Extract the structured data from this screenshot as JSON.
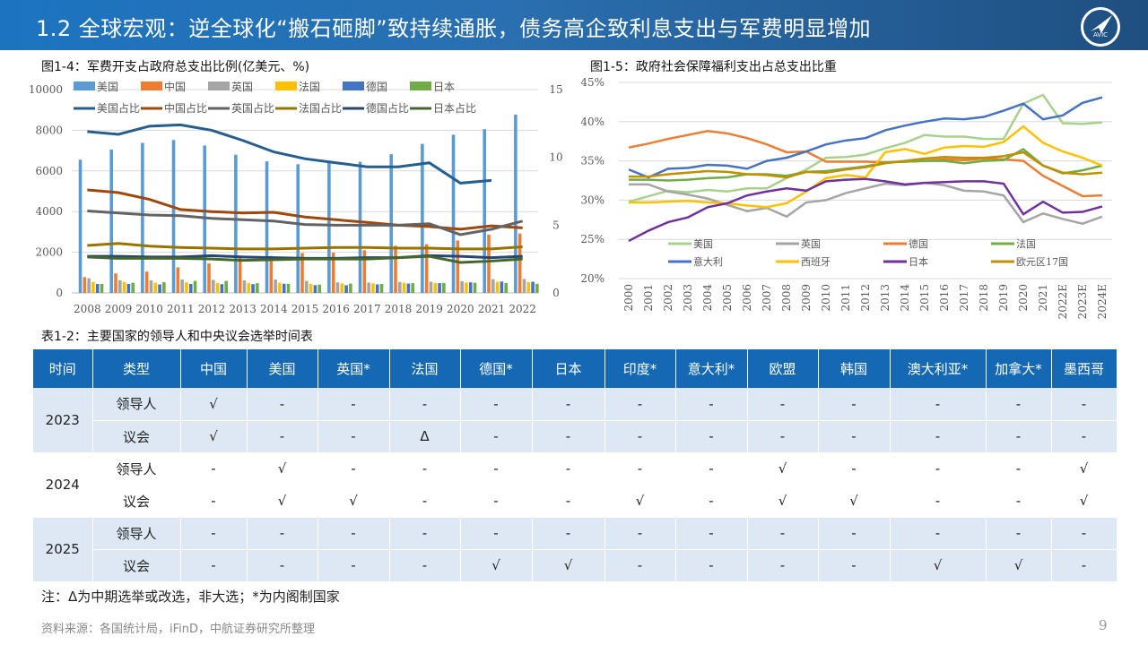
{
  "header": {
    "title": "1.2 全球宏观：逆全球化“搬石砸脚”致持续通胀，债务高企致利息支出与军费明显增加",
    "logo_text": "AVIC"
  },
  "colors": {
    "header": "#1c74c0",
    "table_header": "#1468b4",
    "table_alt": "#dde8f4"
  },
  "chart_data": [
    {
      "type": "bar+line",
      "title": "图1-4：军费开支占政府总支出比例(亿美元、%)",
      "categories": [
        "2008",
        "2009",
        "2010",
        "2011",
        "2012",
        "2013",
        "2014",
        "2015",
        "2016",
        "2017",
        "2018",
        "2019",
        "2020",
        "2021",
        "2022"
      ],
      "ylim": [
        0,
        10000
      ],
      "yticks": [
        "0",
        "2000",
        "4000",
        "6000",
        "8000",
        "10000"
      ],
      "y2lim": [
        0,
        15
      ],
      "y2ticks": [
        "0",
        "5",
        "10",
        "15"
      ],
      "legend": "top",
      "bar_series": [
        {
          "name": "美国",
          "color": "#5b9bd5",
          "values": [
            6550,
            7050,
            7380,
            7520,
            7250,
            6800,
            6470,
            6330,
            6400,
            6450,
            6820,
            7330,
            7780,
            8050,
            8770
          ]
        },
        {
          "name": "中国",
          "color": "#ed7d31",
          "values": [
            780,
            960,
            1050,
            1260,
            1450,
            1720,
            1820,
            1960,
            1980,
            2100,
            2320,
            2400,
            2580,
            2860,
            2920
          ]
        },
        {
          "name": "英国",
          "color": "#a5a5a5",
          "values": [
            720,
            620,
            620,
            660,
            640,
            620,
            660,
            590,
            520,
            510,
            540,
            550,
            580,
            680,
            690
          ]
        },
        {
          "name": "法国",
          "color": "#ffc000",
          "values": [
            540,
            540,
            500,
            520,
            490,
            490,
            500,
            440,
            470,
            470,
            500,
            490,
            510,
            550,
            530
          ]
        },
        {
          "name": "德国",
          "color": "#4472c4",
          "values": [
            440,
            440,
            420,
            440,
            430,
            430,
            450,
            380,
            380,
            420,
            460,
            480,
            520,
            560,
            550
          ]
        },
        {
          "name": "日本",
          "color": "#70ad47",
          "values": [
            440,
            500,
            530,
            590,
            590,
            480,
            450,
            410,
            460,
            440,
            480,
            490,
            500,
            490,
            450
          ]
        }
      ],
      "line_series": [
        {
          "name": "美国占比",
          "color": "#255e91",
          "values": [
            11.9,
            11.7,
            12.3,
            12.4,
            12.0,
            11.25,
            10.4,
            9.9,
            9.6,
            9.3,
            9.3,
            9.6,
            8.1,
            8.3,
            null
          ]
        },
        {
          "name": "中国占比",
          "color": "#9e480e",
          "values": [
            7.6,
            7.4,
            6.9,
            6.15,
            6.0,
            5.9,
            5.95,
            5.6,
            5.4,
            5.2,
            5.0,
            4.9,
            4.7,
            4.95,
            4.8
          ]
        },
        {
          "name": "英国占比",
          "color": "#636363",
          "values": [
            6.05,
            5.9,
            5.75,
            5.7,
            5.5,
            5.4,
            5.3,
            5.05,
            5.0,
            5.0,
            5.0,
            5.1,
            4.3,
            4.7,
            5.3
          ]
        },
        {
          "name": "法国占比",
          "color": "#997300",
          "values": [
            3.5,
            3.65,
            3.45,
            3.35,
            3.3,
            3.25,
            3.25,
            3.3,
            3.35,
            3.35,
            3.3,
            3.3,
            3.25,
            3.25,
            3.4
          ]
        },
        {
          "name": "德国占比",
          "color": "#264478",
          "values": [
            2.7,
            2.7,
            2.65,
            2.65,
            2.75,
            2.65,
            2.6,
            2.55,
            2.55,
            2.6,
            2.6,
            2.75,
            2.7,
            2.6,
            2.7
          ]
        },
        {
          "name": "日本占比",
          "color": "#43682b",
          "values": [
            2.65,
            2.55,
            2.55,
            2.55,
            2.5,
            2.4,
            2.45,
            2.5,
            2.5,
            2.5,
            2.6,
            2.7,
            2.25,
            2.35,
            2.5
          ]
        }
      ]
    },
    {
      "type": "line",
      "title": "图1-5：政府社会保障福利支出占总支出比重",
      "categories": [
        "2000",
        "2001",
        "2002",
        "2003",
        "2004",
        "2005",
        "2006",
        "2007",
        "2008",
        "2009",
        "2010",
        "2011",
        "2012",
        "2013",
        "2014",
        "2015",
        "2016",
        "2017",
        "2018",
        "2019",
        "2020",
        "2021",
        "2022E",
        "2023E",
        "2024E"
      ],
      "ylim": [
        20,
        45
      ],
      "yticks": [
        "20%",
        "25%",
        "30%",
        "35%",
        "40%",
        "45%"
      ],
      "grid": true,
      "legend": "bottom-inside",
      "series": [
        {
          "name": "美国",
          "color": "#a9d18e",
          "values": [
            29.8,
            30.5,
            31.2,
            31.0,
            31.3,
            31.1,
            31.5,
            31.5,
            32.8,
            33.9,
            35.4,
            35.5,
            35.8,
            36.6,
            37.3,
            38.3,
            38.1,
            38.1,
            37.8,
            37.8,
            42.3,
            43.4,
            39.8,
            39.7,
            39.9
          ]
        },
        {
          "name": "英国",
          "color": "#a5a5a5",
          "values": [
            32.0,
            32.0,
            31.1,
            30.7,
            30.2,
            29.4,
            28.6,
            29.0,
            27.9,
            29.7,
            30.0,
            30.9,
            31.5,
            32.1,
            31.9,
            32.2,
            31.9,
            31.2,
            31.1,
            30.6,
            27.2,
            28.3,
            27.6,
            27.0,
            27.9
          ]
        },
        {
          "name": "德国",
          "color": "#ed7d31",
          "values": [
            36.7,
            37.2,
            37.8,
            38.3,
            38.8,
            38.5,
            37.9,
            37.1,
            36.1,
            36.2,
            34.9,
            34.9,
            34.9,
            34.8,
            34.9,
            35.0,
            35.2,
            35.1,
            35.3,
            35.2,
            35.0,
            33.1,
            31.8,
            30.5,
            30.6
          ]
        },
        {
          "name": "法国",
          "color": "#70ad47",
          "values": [
            32.6,
            32.6,
            32.5,
            32.6,
            32.8,
            32.9,
            33.3,
            33.3,
            33.1,
            33.6,
            33.7,
            34.0,
            34.3,
            34.8,
            34.9,
            35.0,
            35.0,
            34.7,
            35.0,
            35.1,
            36.5,
            34.4,
            33.4,
            33.8,
            34.4
          ]
        },
        {
          "name": "意大利",
          "color": "#4472c4",
          "values": [
            33.9,
            32.9,
            34.0,
            34.1,
            34.5,
            34.4,
            34.0,
            35.0,
            35.4,
            36.2,
            37.1,
            37.6,
            37.9,
            38.9,
            39.5,
            40.0,
            40.4,
            40.3,
            40.6,
            41.4,
            42.3,
            40.3,
            40.8,
            42.4,
            43.1
          ]
        },
        {
          "name": "西班牙",
          "color": "#ffc000",
          "values": [
            29.7,
            29.7,
            29.8,
            29.9,
            29.7,
            29.6,
            29.3,
            29.1,
            29.6,
            31.1,
            32.8,
            33.2,
            32.9,
            36.1,
            36.5,
            35.9,
            36.7,
            36.9,
            36.8,
            37.4,
            39.4,
            37.3,
            36.2,
            35.4,
            34.4
          ]
        },
        {
          "name": "日本",
          "color": "#7030a0",
          "values": [
            24.8,
            26.1,
            27.2,
            27.8,
            29.1,
            29.6,
            30.6,
            31.1,
            31.5,
            31.2,
            32.4,
            32.6,
            32.7,
            32.4,
            32.0,
            32.2,
            32.3,
            32.4,
            32.4,
            32.1,
            28.2,
            29.8,
            28.4,
            28.5,
            29.2
          ]
        },
        {
          "name": "欧元区17国",
          "color": "#bf9000",
          "values": [
            33.0,
            33.0,
            33.3,
            33.5,
            33.7,
            33.6,
            33.3,
            33.2,
            32.9,
            33.6,
            33.5,
            33.9,
            34.2,
            34.7,
            35.0,
            35.3,
            35.5,
            35.4,
            35.4,
            35.6,
            36.1,
            34.4,
            33.5,
            33.3,
            33.5
          ]
        }
      ]
    }
  ],
  "table": {
    "title": "表1-2：主要国家的领导人和中央议会选举时间表",
    "headers": [
      "时间",
      "类型",
      "中国",
      "美国",
      "英国*",
      "法国",
      "德国*",
      "日本",
      "印度*",
      "意大利*",
      "欧盟",
      "韩国",
      "澳大利亚*",
      "加拿大*",
      "墨西哥"
    ],
    "groups": [
      {
        "year": "2023",
        "rows": [
          {
            "type": "领导人",
            "cells": [
              "√",
              "-",
              "-",
              "-",
              "-",
              "-",
              "-",
              "-",
              "-",
              "-",
              "-",
              "-",
              "-"
            ]
          },
          {
            "type": "议会",
            "cells": [
              "√",
              "-",
              "-",
              "Δ",
              "-",
              "-",
              "-",
              "-",
              "-",
              "-",
              "-",
              "-",
              "-"
            ]
          }
        ]
      },
      {
        "year": "2024",
        "rows": [
          {
            "type": "领导人",
            "cells": [
              "-",
              "√",
              "-",
              "-",
              "-",
              "-",
              "-",
              "-",
              "√",
              "-",
              "-",
              "-",
              "√"
            ]
          },
          {
            "type": "议会",
            "cells": [
              "-",
              "√",
              "√",
              "-",
              "-",
              "-",
              "√",
              "-",
              "√",
              "√",
              "-",
              "-",
              "√"
            ]
          }
        ]
      },
      {
        "year": "2025",
        "rows": [
          {
            "type": "领导人",
            "cells": [
              "-",
              "-",
              "-",
              "-",
              "-",
              "-",
              "-",
              "-",
              "-",
              "-",
              "-",
              "-",
              "-"
            ]
          },
          {
            "type": "议会",
            "cells": [
              "-",
              "-",
              "-",
              "-",
              "√",
              "√",
              "-",
              "-",
              "-",
              "-",
              "√",
              "√",
              "-"
            ]
          }
        ]
      }
    ]
  },
  "note": "注：Δ为中期选举或改选，非大选；*为内阁制国家",
  "source": "资料来源：各国统计局，iFinD，中航证券研究所整理",
  "page_number": "9"
}
